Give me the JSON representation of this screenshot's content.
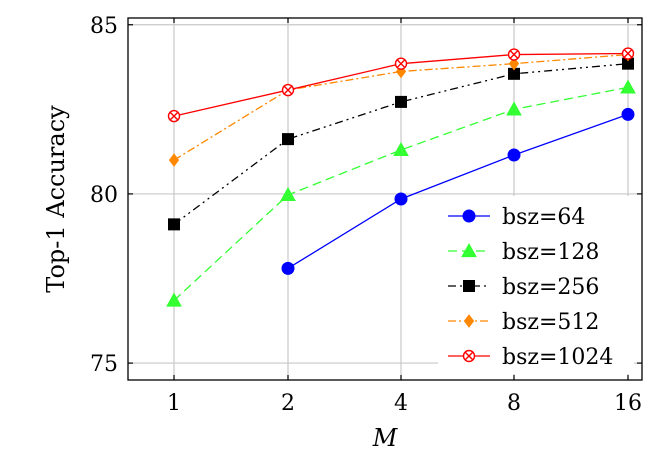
{
  "chart_data": {
    "type": "line",
    "title": "",
    "xlabel": "M",
    "ylabel": "Top-1 Accuracy",
    "categories": [
      "1",
      "2",
      "4",
      "8",
      "16"
    ],
    "x": [
      1,
      2,
      4,
      8,
      16
    ],
    "xscale": "log2",
    "ylim": [
      74.5,
      85.2
    ],
    "yticks": [
      75,
      80,
      85
    ],
    "grid": true,
    "legend_position": "bottom-right",
    "series": [
      {
        "name": "bsz=64",
        "values": [
          null,
          77.8,
          79.85,
          81.15,
          82.35
        ],
        "color": "#0000ff",
        "marker": "circle",
        "dash": "solid"
      },
      {
        "name": "bsz=128",
        "values": [
          76.85,
          79.97,
          81.3,
          82.5,
          83.15
        ],
        "color": "#33ff33",
        "marker": "triangle",
        "dash": "dashed"
      },
      {
        "name": "bsz=256",
        "values": [
          79.1,
          81.62,
          82.72,
          83.55,
          83.85
        ],
        "color": "#000000",
        "marker": "square",
        "dash": "dashdotdot"
      },
      {
        "name": "bsz=512",
        "values": [
          81.0,
          83.07,
          83.62,
          83.85,
          84.12
        ],
        "color": "#ff8800",
        "marker": "diamond",
        "dash": "dashdot"
      },
      {
        "name": "bsz=1024",
        "values": [
          82.3,
          83.07,
          83.85,
          84.12,
          84.15
        ],
        "color": "#ff0000",
        "marker": "otimes",
        "dash": "solid"
      }
    ]
  }
}
